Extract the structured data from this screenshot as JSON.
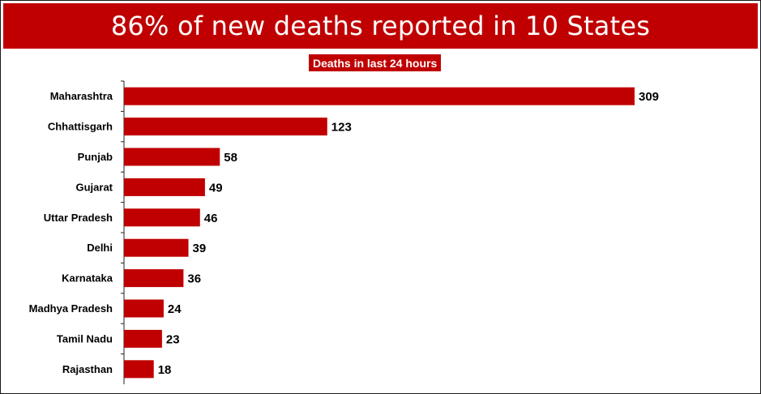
{
  "title": "86% of new deaths reported in 10 States",
  "subtitle": "Deaths in last 24 hours",
  "colors": {
    "accent": "#c00000",
    "bar": "#c00000",
    "text": "#000000"
  },
  "chart_data": {
    "type": "bar",
    "orientation": "horizontal",
    "subtitle": "Deaths in last 24 hours",
    "categories": [
      "Maharashtra",
      "Chhattisgarh",
      "Punjab",
      "Gujarat",
      "Uttar Pradesh",
      "Delhi",
      "Karnataka",
      "Madhya Pradesh",
      "Tamil Nadu",
      "Rajasthan"
    ],
    "values": [
      309,
      123,
      58,
      49,
      46,
      39,
      36,
      24,
      23,
      18
    ],
    "data_labels": true,
    "grid": false,
    "legend": "none"
  }
}
